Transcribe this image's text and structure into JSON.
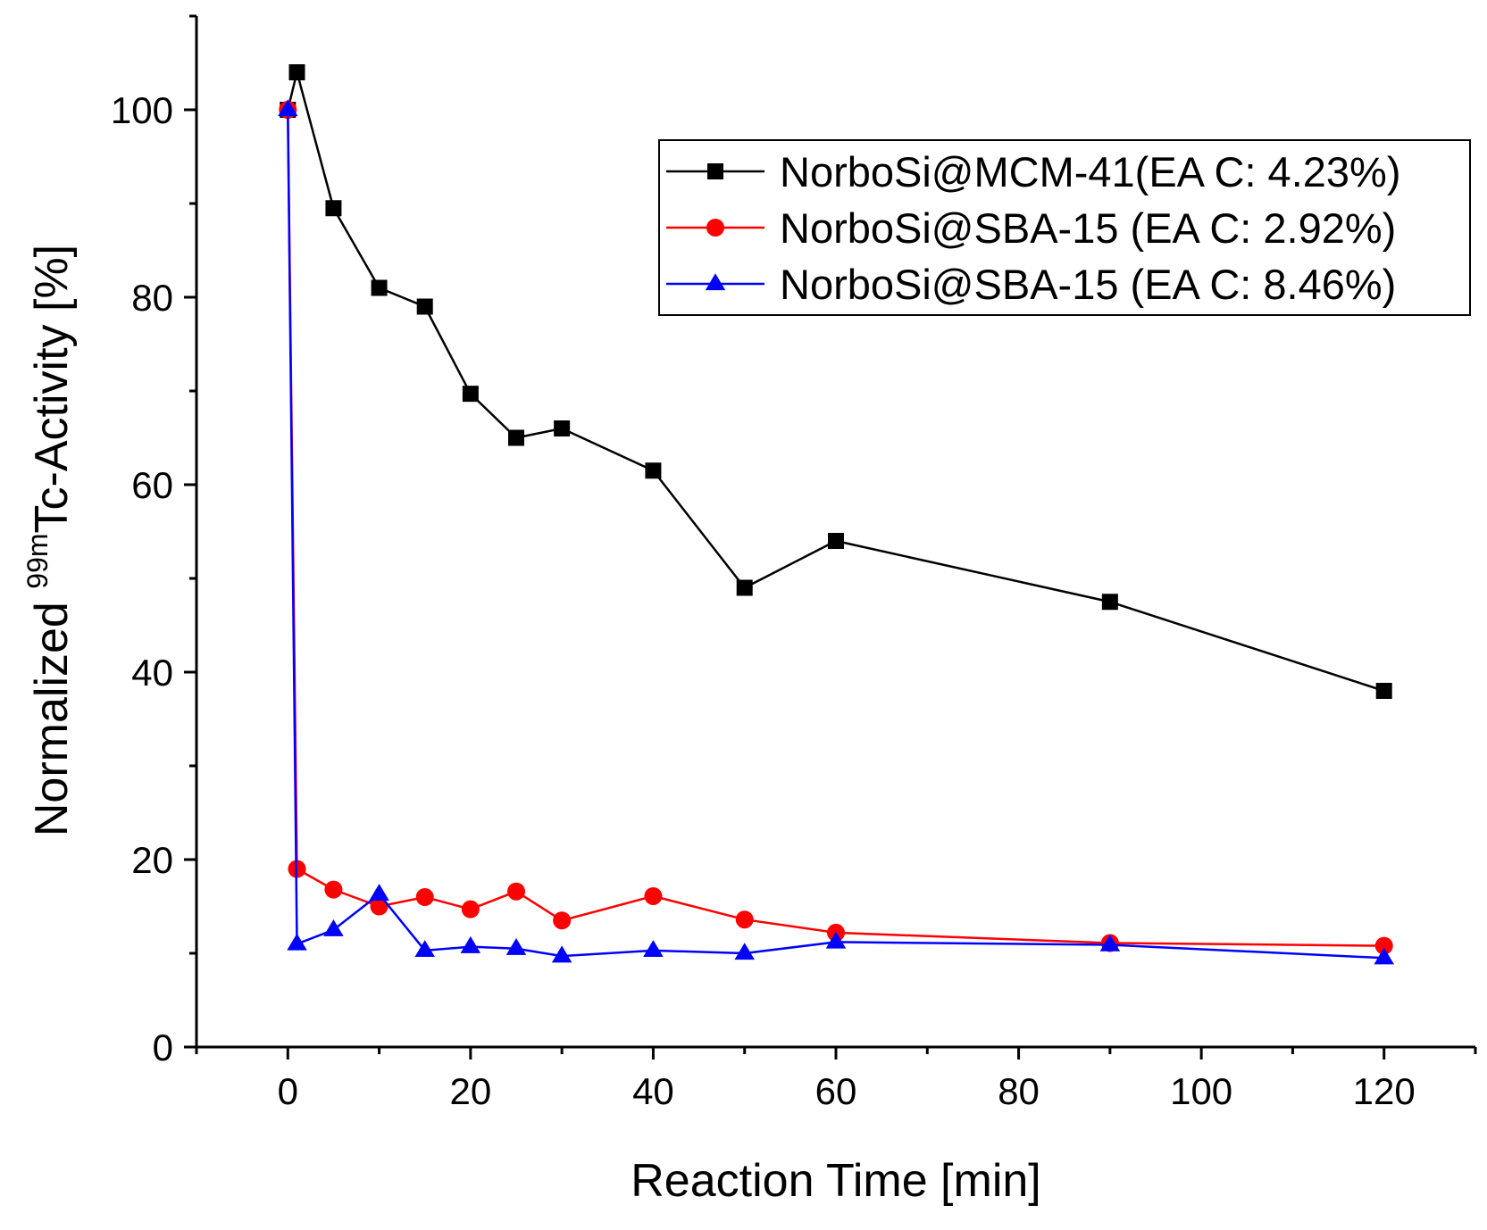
{
  "chart_data": {
    "type": "line",
    "title": "",
    "xlabel": "Reaction Time [min]",
    "ylabel_prefix": "Normalized ",
    "ylabel_superscript": "99m",
    "ylabel_suffix": "Tc-Activity [%]",
    "xlim": [
      -10,
      130
    ],
    "ylim": [
      0,
      110
    ],
    "xticks": [
      0,
      20,
      40,
      60,
      80,
      100,
      120
    ],
    "yticks": [
      0,
      20,
      40,
      60,
      80,
      100
    ],
    "grid": false,
    "legend_position": "top-right",
    "series": [
      {
        "name": "NorboSi@MCM-41(EA C: 4.23%)",
        "color": "#000000",
        "marker": "square",
        "x": [
          0,
          1,
          5,
          10,
          15,
          20,
          25,
          30,
          40,
          50,
          60,
          90,
          120
        ],
        "y": [
          100,
          104,
          89.5,
          81,
          79,
          69.7,
          65,
          66,
          61.5,
          49,
          54,
          47.5,
          38
        ]
      },
      {
        "name": "NorboSi@SBA-15 (EA C: 2.92%)",
        "color": "#ff0000",
        "marker": "circle",
        "x": [
          0,
          1,
          5,
          10,
          15,
          20,
          25,
          30,
          40,
          50,
          60,
          90,
          120
        ],
        "y": [
          100,
          19,
          16.8,
          15,
          16,
          14.7,
          16.6,
          13.5,
          16.1,
          13.6,
          12.2,
          11.1,
          10.8
        ]
      },
      {
        "name": "NorboSi@SBA-15 (EA C: 8.46%)",
        "color": "#0000ff",
        "marker": "triangle",
        "x": [
          0,
          1,
          5,
          10,
          15,
          20,
          25,
          30,
          40,
          50,
          60,
          90,
          120
        ],
        "y": [
          100,
          11,
          12.5,
          16.3,
          10.3,
          10.7,
          10.5,
          9.7,
          10.3,
          10,
          11.2,
          10.9,
          9.5
        ]
      }
    ]
  }
}
